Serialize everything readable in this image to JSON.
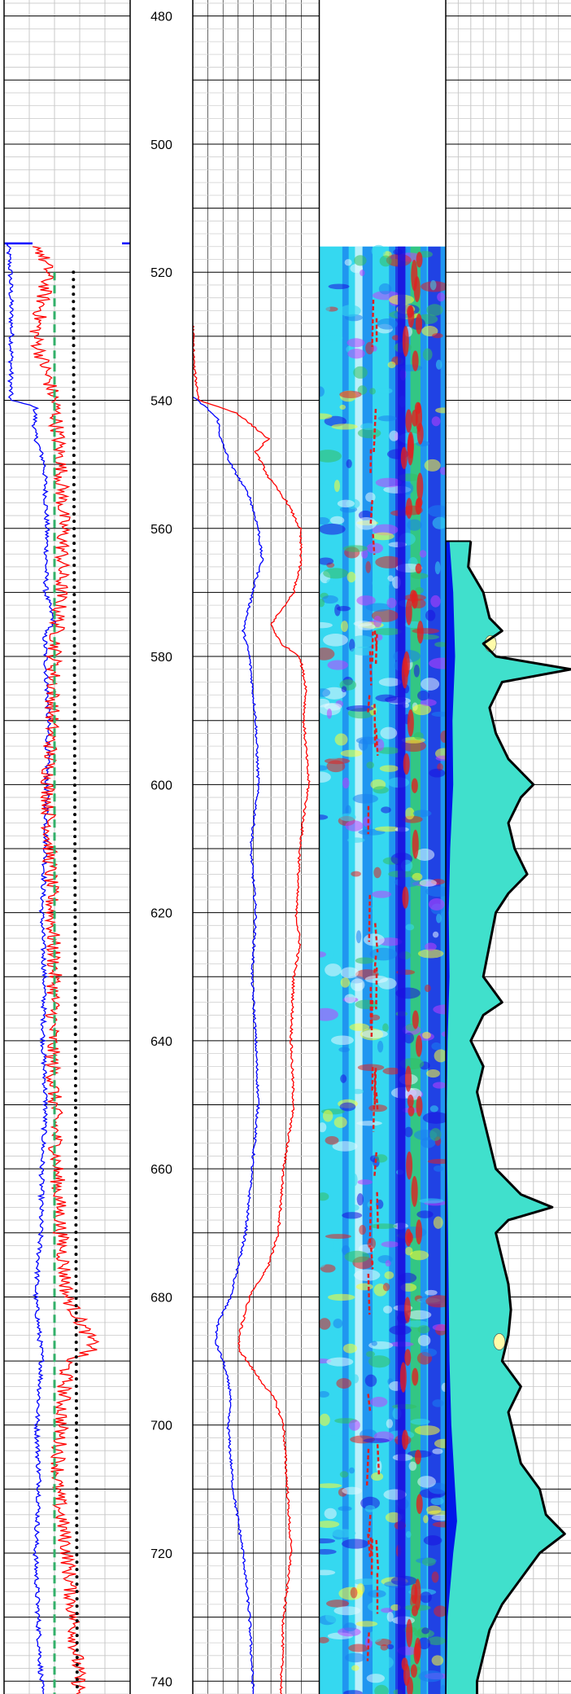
{
  "chart_data": {
    "type": "line",
    "title": "",
    "depth_axis": {
      "range": [
        477.5,
        742.0
      ],
      "ticks": [
        480,
        500,
        520,
        540,
        560,
        580,
        600,
        620,
        640,
        660,
        680,
        700,
        720,
        740
      ],
      "grid_step": 2,
      "major_step": 10
    },
    "tracks": [
      {
        "id": "track1",
        "grid": true,
        "series": [
          {
            "color": "#0000ff",
            "style": "solid",
            "x_range": [
              0,
              1
            ],
            "data_start_depth": 515.5,
            "profile": [
              [
                515.5,
                0.03
              ],
              [
                520,
                0.05
              ],
              [
                530,
                0.06
              ],
              [
                540,
                0.05
              ],
              [
                541,
                0.25
              ],
              [
                545,
                0.24
              ],
              [
                550,
                0.32
              ],
              [
                560,
                0.34
              ],
              [
                570,
                0.33
              ],
              [
                575,
                0.4
              ],
              [
                576,
                0.32
              ],
              [
                580,
                0.33
              ],
              [
                590,
                0.35
              ],
              [
                600,
                0.34
              ],
              [
                610,
                0.33
              ],
              [
                620,
                0.3
              ],
              [
                630,
                0.32
              ],
              [
                640,
                0.31
              ],
              [
                650,
                0.33
              ],
              [
                660,
                0.3
              ],
              [
                670,
                0.29
              ],
              [
                680,
                0.25
              ],
              [
                690,
                0.3
              ],
              [
                700,
                0.26
              ],
              [
                710,
                0.28
              ],
              [
                720,
                0.25
              ],
              [
                730,
                0.27
              ],
              [
                742,
                0.3
              ]
            ]
          },
          {
            "color": "#ff0000",
            "style": "solid",
            "x_range": [
              0,
              1
            ],
            "data_start_depth": 516,
            "profile": [
              [
                516,
                0.28
              ],
              [
                520,
                0.35
              ],
              [
                530,
                0.25
              ],
              [
                540,
                0.4
              ],
              [
                550,
                0.45
              ],
              [
                560,
                0.47
              ],
              [
                570,
                0.45
              ],
              [
                580,
                0.4
              ],
              [
                590,
                0.38
              ],
              [
                600,
                0.35
              ],
              [
                610,
                0.36
              ],
              [
                620,
                0.38
              ],
              [
                630,
                0.4
              ],
              [
                640,
                0.38
              ],
              [
                650,
                0.4
              ],
              [
                660,
                0.42
              ],
              [
                670,
                0.45
              ],
              [
                680,
                0.5
              ],
              [
                688,
                0.72
              ],
              [
                690,
                0.5
              ],
              [
                700,
                0.45
              ],
              [
                710,
                0.42
              ],
              [
                720,
                0.5
              ],
              [
                730,
                0.55
              ],
              [
                742,
                0.6
              ]
            ]
          },
          {
            "color": "#33b06a",
            "style": "dashed",
            "x_range": [
              0,
              1
            ],
            "data_start_depth": 520,
            "profile": [
              [
                520,
                0.4
              ],
              [
                742,
                0.4
              ]
            ]
          },
          {
            "color": "#000000",
            "style": "dotted",
            "x_range": [
              0,
              1
            ],
            "data_start_depth": 520,
            "profile": [
              [
                520,
                0.55
              ],
              [
                742,
                0.58
              ]
            ]
          }
        ]
      },
      {
        "id": "track2",
        "grid": true,
        "series": [
          {
            "color": "#0000ff",
            "style": "solid",
            "x_range": [
              0,
              1
            ],
            "data_start_depth": 539.5,
            "profile": [
              [
                539.5,
                0.0
              ],
              [
                541,
                0.1
              ],
              [
                543,
                0.2
              ],
              [
                546,
                0.22
              ],
              [
                550,
                0.3
              ],
              [
                555,
                0.45
              ],
              [
                560,
                0.52
              ],
              [
                565,
                0.55
              ],
              [
                568,
                0.5
              ],
              [
                572,
                0.45
              ],
              [
                576,
                0.4
              ],
              [
                580,
                0.45
              ],
              [
                590,
                0.5
              ],
              [
                600,
                0.52
              ],
              [
                610,
                0.46
              ],
              [
                620,
                0.5
              ],
              [
                630,
                0.47
              ],
              [
                640,
                0.5
              ],
              [
                650,
                0.52
              ],
              [
                660,
                0.47
              ],
              [
                670,
                0.42
              ],
              [
                680,
                0.3
              ],
              [
                684,
                0.2
              ],
              [
                687,
                0.18
              ],
              [
                690,
                0.24
              ],
              [
                695,
                0.3
              ],
              [
                700,
                0.28
              ],
              [
                710,
                0.32
              ],
              [
                720,
                0.4
              ],
              [
                730,
                0.45
              ],
              [
                742,
                0.48
              ]
            ]
          },
          {
            "color": "#ff0000",
            "style": "solid",
            "x_range": [
              0,
              1
            ],
            "data_start_depth": 528,
            "profile": [
              [
                528,
                0.0
              ],
              [
                535,
                0.01
              ],
              [
                540,
                0.05
              ],
              [
                542,
                0.35
              ],
              [
                546,
                0.6
              ],
              [
                548,
                0.5
              ],
              [
                552,
                0.6
              ],
              [
                556,
                0.75
              ],
              [
                560,
                0.85
              ],
              [
                565,
                0.86
              ],
              [
                570,
                0.8
              ],
              [
                575,
                0.62
              ],
              [
                578,
                0.7
              ],
              [
                580,
                0.85
              ],
              [
                585,
                0.9
              ],
              [
                590,
                0.88
              ],
              [
                600,
                0.92
              ],
              [
                605,
                0.88
              ],
              [
                610,
                0.85
              ],
              [
                620,
                0.82
              ],
              [
                625,
                0.85
              ],
              [
                630,
                0.8
              ],
              [
                640,
                0.78
              ],
              [
                650,
                0.8
              ],
              [
                660,
                0.72
              ],
              [
                670,
                0.68
              ],
              [
                675,
                0.6
              ],
              [
                680,
                0.45
              ],
              [
                685,
                0.38
              ],
              [
                688,
                0.36
              ],
              [
                692,
                0.5
              ],
              [
                696,
                0.65
              ],
              [
                700,
                0.72
              ],
              [
                710,
                0.75
              ],
              [
                720,
                0.78
              ],
              [
                730,
                0.72
              ],
              [
                742,
                0.7
              ]
            ]
          }
        ]
      },
      {
        "id": "image_track",
        "type": "heatmap",
        "data_start_depth": 516,
        "colormap": [
          "#e6f8ff",
          "#35d8f0",
          "#1a80f0",
          "#1a10e0",
          "#33c060",
          "#ffff33",
          "#e02020",
          "#c040ff"
        ]
      },
      {
        "id": "distribution_track",
        "type": "area",
        "data_start_depth": 562,
        "fill_colors": {
          "base": "#0018e8",
          "main": "#40e0cc",
          "highlight": "#fffcaa"
        },
        "outline": "#000000",
        "profile": [
          [
            562,
            0.2
          ],
          [
            566,
            0.18
          ],
          [
            570,
            0.3
          ],
          [
            574,
            0.35
          ],
          [
            576,
            0.45
          ],
          [
            578,
            0.3
          ],
          [
            580,
            0.4
          ],
          [
            582,
            1.0
          ],
          [
            584,
            0.45
          ],
          [
            588,
            0.35
          ],
          [
            592,
            0.4
          ],
          [
            596,
            0.5
          ],
          [
            600,
            0.7
          ],
          [
            602,
            0.6
          ],
          [
            606,
            0.5
          ],
          [
            610,
            0.55
          ],
          [
            614,
            0.65
          ],
          [
            617,
            0.5
          ],
          [
            620,
            0.4
          ],
          [
            625,
            0.35
          ],
          [
            630,
            0.3
          ],
          [
            634,
            0.45
          ],
          [
            636,
            0.3
          ],
          [
            640,
            0.2
          ],
          [
            644,
            0.3
          ],
          [
            648,
            0.25
          ],
          [
            652,
            0.3
          ],
          [
            656,
            0.35
          ],
          [
            660,
            0.4
          ],
          [
            664,
            0.6
          ],
          [
            666,
            0.85
          ],
          [
            668,
            0.5
          ],
          [
            670,
            0.4
          ],
          [
            674,
            0.45
          ],
          [
            678,
            0.5
          ],
          [
            682,
            0.52
          ],
          [
            686,
            0.5
          ],
          [
            690,
            0.45
          ],
          [
            694,
            0.6
          ],
          [
            698,
            0.5
          ],
          [
            702,
            0.55
          ],
          [
            706,
            0.6
          ],
          [
            710,
            0.75
          ],
          [
            714,
            0.8
          ],
          [
            717,
            0.95
          ],
          [
            720,
            0.75
          ],
          [
            724,
            0.6
          ],
          [
            728,
            0.45
          ],
          [
            732,
            0.35
          ],
          [
            736,
            0.3
          ],
          [
            740,
            0.25
          ],
          [
            742,
            0.25
          ]
        ],
        "base_profile": [
          [
            562,
            0.1
          ],
          [
            570,
            0.2
          ],
          [
            580,
            0.25
          ],
          [
            590,
            0.18
          ],
          [
            600,
            0.2
          ],
          [
            610,
            0.12
          ],
          [
            620,
            0.08
          ],
          [
            630,
            0.1
          ],
          [
            640,
            0.05
          ],
          [
            650,
            0.03
          ],
          [
            660,
            0.04
          ],
          [
            670,
            0.06
          ],
          [
            680,
            0.08
          ],
          [
            690,
            0.1
          ],
          [
            700,
            0.15
          ],
          [
            710,
            0.25
          ],
          [
            715,
            0.3
          ],
          [
            720,
            0.2
          ],
          [
            730,
            0.05
          ],
          [
            742,
            0.02
          ]
        ]
      }
    ]
  }
}
